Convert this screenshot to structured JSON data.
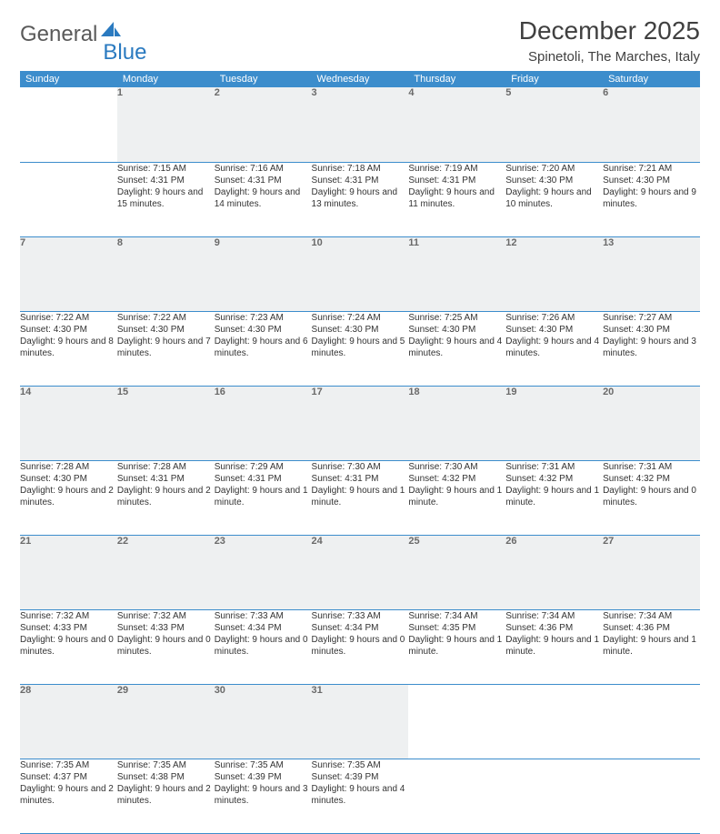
{
  "brand": {
    "part1": "General",
    "part2": "Blue"
  },
  "title": "December 2025",
  "location": "Spinetoli, The Marches, Italy",
  "colors": {
    "header_bg": "#3c8dcc",
    "header_text": "#ffffff",
    "daynum_bg": "#eef0f1",
    "daynum_text": "#6a6a6a",
    "border": "#3c8dcc",
    "logo_gray": "#5a5a5a",
    "logo_blue": "#2a7ac0"
  },
  "day_headers": [
    "Sunday",
    "Monday",
    "Tuesday",
    "Wednesday",
    "Thursday",
    "Friday",
    "Saturday"
  ],
  "weeks": [
    {
      "nums": [
        "",
        "1",
        "2",
        "3",
        "4",
        "5",
        "6"
      ],
      "cells": [
        null,
        {
          "sunrise": "7:15 AM",
          "sunset": "4:31 PM",
          "daylight": "9 hours and 15 minutes."
        },
        {
          "sunrise": "7:16 AM",
          "sunset": "4:31 PM",
          "daylight": "9 hours and 14 minutes."
        },
        {
          "sunrise": "7:18 AM",
          "sunset": "4:31 PM",
          "daylight": "9 hours and 13 minutes."
        },
        {
          "sunrise": "7:19 AM",
          "sunset": "4:31 PM",
          "daylight": "9 hours and 11 minutes."
        },
        {
          "sunrise": "7:20 AM",
          "sunset": "4:30 PM",
          "daylight": "9 hours and 10 minutes."
        },
        {
          "sunrise": "7:21 AM",
          "sunset": "4:30 PM",
          "daylight": "9 hours and 9 minutes."
        }
      ]
    },
    {
      "nums": [
        "7",
        "8",
        "9",
        "10",
        "11",
        "12",
        "13"
      ],
      "cells": [
        {
          "sunrise": "7:22 AM",
          "sunset": "4:30 PM",
          "daylight": "9 hours and 8 minutes."
        },
        {
          "sunrise": "7:22 AM",
          "sunset": "4:30 PM",
          "daylight": "9 hours and 7 minutes."
        },
        {
          "sunrise": "7:23 AM",
          "sunset": "4:30 PM",
          "daylight": "9 hours and 6 minutes."
        },
        {
          "sunrise": "7:24 AM",
          "sunset": "4:30 PM",
          "daylight": "9 hours and 5 minutes."
        },
        {
          "sunrise": "7:25 AM",
          "sunset": "4:30 PM",
          "daylight": "9 hours and 4 minutes."
        },
        {
          "sunrise": "7:26 AM",
          "sunset": "4:30 PM",
          "daylight": "9 hours and 4 minutes."
        },
        {
          "sunrise": "7:27 AM",
          "sunset": "4:30 PM",
          "daylight": "9 hours and 3 minutes."
        }
      ]
    },
    {
      "nums": [
        "14",
        "15",
        "16",
        "17",
        "18",
        "19",
        "20"
      ],
      "cells": [
        {
          "sunrise": "7:28 AM",
          "sunset": "4:30 PM",
          "daylight": "9 hours and 2 minutes."
        },
        {
          "sunrise": "7:28 AM",
          "sunset": "4:31 PM",
          "daylight": "9 hours and 2 minutes."
        },
        {
          "sunrise": "7:29 AM",
          "sunset": "4:31 PM",
          "daylight": "9 hours and 1 minute."
        },
        {
          "sunrise": "7:30 AM",
          "sunset": "4:31 PM",
          "daylight": "9 hours and 1 minute."
        },
        {
          "sunrise": "7:30 AM",
          "sunset": "4:32 PM",
          "daylight": "9 hours and 1 minute."
        },
        {
          "sunrise": "7:31 AM",
          "sunset": "4:32 PM",
          "daylight": "9 hours and 1 minute."
        },
        {
          "sunrise": "7:31 AM",
          "sunset": "4:32 PM",
          "daylight": "9 hours and 0 minutes."
        }
      ]
    },
    {
      "nums": [
        "21",
        "22",
        "23",
        "24",
        "25",
        "26",
        "27"
      ],
      "cells": [
        {
          "sunrise": "7:32 AM",
          "sunset": "4:33 PM",
          "daylight": "9 hours and 0 minutes."
        },
        {
          "sunrise": "7:32 AM",
          "sunset": "4:33 PM",
          "daylight": "9 hours and 0 minutes."
        },
        {
          "sunrise": "7:33 AM",
          "sunset": "4:34 PM",
          "daylight": "9 hours and 0 minutes."
        },
        {
          "sunrise": "7:33 AM",
          "sunset": "4:34 PM",
          "daylight": "9 hours and 0 minutes."
        },
        {
          "sunrise": "7:34 AM",
          "sunset": "4:35 PM",
          "daylight": "9 hours and 1 minute."
        },
        {
          "sunrise": "7:34 AM",
          "sunset": "4:36 PM",
          "daylight": "9 hours and 1 minute."
        },
        {
          "sunrise": "7:34 AM",
          "sunset": "4:36 PM",
          "daylight": "9 hours and 1 minute."
        }
      ]
    },
    {
      "nums": [
        "28",
        "29",
        "30",
        "31",
        "",
        "",
        ""
      ],
      "cells": [
        {
          "sunrise": "7:35 AM",
          "sunset": "4:37 PM",
          "daylight": "9 hours and 2 minutes."
        },
        {
          "sunrise": "7:35 AM",
          "sunset": "4:38 PM",
          "daylight": "9 hours and 2 minutes."
        },
        {
          "sunrise": "7:35 AM",
          "sunset": "4:39 PM",
          "daylight": "9 hours and 3 minutes."
        },
        {
          "sunrise": "7:35 AM",
          "sunset": "4:39 PM",
          "daylight": "9 hours and 4 minutes."
        },
        null,
        null,
        null
      ]
    }
  ],
  "labels": {
    "sunrise": "Sunrise:",
    "sunset": "Sunset:",
    "daylight": "Daylight:"
  }
}
